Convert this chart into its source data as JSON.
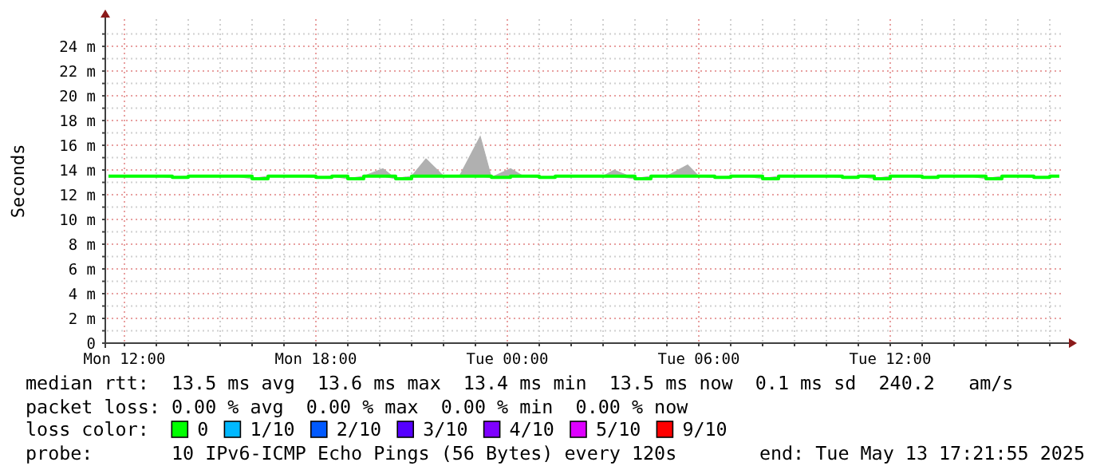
{
  "chart_data": {
    "type": "line",
    "ylabel": "Seconds",
    "xlim": [
      "2025-05-12T11:27",
      "2025-05-13T17:27"
    ],
    "xticks": [
      {
        "value": "2025-05-12T12:00",
        "label": "Mon 12:00"
      },
      {
        "value": "2025-05-12T13:00",
        "label": null
      },
      {
        "value": "2025-05-12T14:00",
        "label": null
      },
      {
        "value": "2025-05-12T15:00",
        "label": null
      },
      {
        "value": "2025-05-12T16:00",
        "label": null
      },
      {
        "value": "2025-05-12T17:00",
        "label": null
      },
      {
        "value": "2025-05-12T18:00",
        "label": "Mon 18:00"
      },
      {
        "value": "2025-05-12T19:00",
        "label": null
      },
      {
        "value": "2025-05-12T20:00",
        "label": null
      },
      {
        "value": "2025-05-12T21:00",
        "label": null
      },
      {
        "value": "2025-05-12T22:00",
        "label": null
      },
      {
        "value": "2025-05-12T23:00",
        "label": null
      },
      {
        "value": "2025-05-13T00:00",
        "label": "Tue 00:00"
      },
      {
        "value": "2025-05-13T01:00",
        "label": null
      },
      {
        "value": "2025-05-13T02:00",
        "label": null
      },
      {
        "value": "2025-05-13T03:00",
        "label": null
      },
      {
        "value": "2025-05-13T04:00",
        "label": null
      },
      {
        "value": "2025-05-13T05:00",
        "label": null
      },
      {
        "value": "2025-05-13T06:00",
        "label": "Tue 06:00"
      },
      {
        "value": "2025-05-13T07:00",
        "label": null
      },
      {
        "value": "2025-05-13T08:00",
        "label": null
      },
      {
        "value": "2025-05-13T09:00",
        "label": null
      },
      {
        "value": "2025-05-13T10:00",
        "label": null
      },
      {
        "value": "2025-05-13T11:00",
        "label": null
      },
      {
        "value": "2025-05-13T12:00",
        "label": "Tue 12:00"
      },
      {
        "value": "2025-05-13T13:00",
        "label": null
      },
      {
        "value": "2025-05-13T14:00",
        "label": null
      },
      {
        "value": "2025-05-13T15:00",
        "label": null
      },
      {
        "value": "2025-05-13T16:00",
        "label": null
      },
      {
        "value": "2025-05-13T17:00",
        "label": null
      }
    ],
    "ylim": [
      0,
      26.2
    ],
    "yticks": [
      0,
      {
        "value": 1,
        "label": null
      },
      {
        "value": 2,
        "label": "2 m"
      },
      {
        "value": 3,
        "label": null
      },
      {
        "value": 4,
        "label": "4 m"
      },
      {
        "value": 5,
        "label": null
      },
      {
        "value": 6,
        "label": "6 m"
      },
      {
        "value": 7,
        "label": null
      },
      {
        "value": 8,
        "label": "8 m"
      },
      {
        "value": 9,
        "label": null
      },
      {
        "value": 10,
        "label": "10 m"
      },
      {
        "value": 11,
        "label": null
      },
      {
        "value": 12,
        "label": "12 m"
      },
      {
        "value": 13,
        "label": null
      },
      {
        "value": 14,
        "label": "14 m"
      },
      {
        "value": 15,
        "label": null
      },
      {
        "value": 16,
        "label": "16 m"
      },
      {
        "value": 17,
        "label": null
      },
      {
        "value": 18,
        "label": "18 m"
      },
      {
        "value": 19,
        "label": null
      },
      {
        "value": 20,
        "label": "20 m"
      },
      {
        "value": 21,
        "label": null
      },
      {
        "value": 22,
        "label": "22 m"
      },
      {
        "value": 23,
        "label": null
      },
      {
        "value": 24,
        "label": "24 m"
      },
      {
        "value": 25,
        "label": null
      }
    ],
    "grid": true,
    "legend": "bottom",
    "legend_title": "loss color:",
    "line_style": "solid",
    "marker": "none",
    "series": [
      {
        "name": "0",
        "color": "#00ff00",
        "x": [
          "2025-05-12T11:30",
          "2025-05-12T12:00",
          "2025-05-12T12:30",
          "2025-05-12T13:00",
          "2025-05-12T13:30",
          "2025-05-12T14:00",
          "2025-05-12T14:30",
          "2025-05-12T15:00",
          "2025-05-12T15:30",
          "2025-05-12T16:00",
          "2025-05-12T16:30",
          "2025-05-12T17:00",
          "2025-05-12T17:30",
          "2025-05-12T18:00",
          "2025-05-12T18:30",
          "2025-05-12T19:00",
          "2025-05-12T19:30",
          "2025-05-12T20:06",
          "2025-05-12T20:30",
          "2025-05-12T21:00",
          "2025-05-12T21:27",
          "2025-05-12T22:00",
          "2025-05-12T22:30",
          "2025-05-12T23:09",
          "2025-05-12T23:30",
          "2025-05-13T00:06",
          "2025-05-13T00:30",
          "2025-05-13T01:00",
          "2025-05-13T01:30",
          "2025-05-13T02:00",
          "2025-05-13T02:30",
          "2025-05-13T03:00",
          "2025-05-13T03:21",
          "2025-05-13T04:00",
          "2025-05-13T04:30",
          "2025-05-13T05:00",
          "2025-05-13T05:39",
          "2025-05-13T06:00",
          "2025-05-13T06:30",
          "2025-05-13T07:00",
          "2025-05-13T07:30",
          "2025-05-13T08:00",
          "2025-05-13T08:30",
          "2025-05-13T09:00",
          "2025-05-13T09:30",
          "2025-05-13T10:00",
          "2025-05-13T10:30",
          "2025-05-13T11:00",
          "2025-05-13T11:30",
          "2025-05-13T12:00",
          "2025-05-13T12:30",
          "2025-05-13T13:00",
          "2025-05-13T13:30",
          "2025-05-13T14:00",
          "2025-05-13T14:30",
          "2025-05-13T15:00",
          "2025-05-13T15:30",
          "2025-05-13T16:00",
          "2025-05-13T16:30",
          "2025-05-13T17:00",
          "2025-05-13T17:18"
        ],
        "values": [
          13.5,
          13.5,
          13.5,
          13.5,
          13.4,
          13.5,
          13.5,
          13.5,
          13.5,
          13.3,
          13.5,
          13.5,
          13.5,
          13.4,
          13.5,
          13.3,
          13.5,
          13.5,
          13.3,
          13.5,
          13.5,
          13.5,
          13.5,
          13.5,
          13.4,
          13.5,
          13.5,
          13.4,
          13.5,
          13.5,
          13.5,
          13.5,
          13.5,
          13.3,
          13.5,
          13.5,
          13.5,
          13.5,
          13.4,
          13.5,
          13.5,
          13.3,
          13.5,
          13.5,
          13.5,
          13.5,
          13.4,
          13.5,
          13.3,
          13.5,
          13.5,
          13.4,
          13.5,
          13.5,
          13.5,
          13.3,
          13.5,
          13.5,
          13.4,
          13.5,
          13.5
        ],
        "lower": [
          13.5,
          13.5,
          13.5,
          13.5,
          13.4,
          13.5,
          13.5,
          13.5,
          13.5,
          13.3,
          13.5,
          13.5,
          13.5,
          13.4,
          13.5,
          13.3,
          13.5,
          13.5,
          13.3,
          13.5,
          13.5,
          13.5,
          13.5,
          13.5,
          13.4,
          13.5,
          13.5,
          13.4,
          13.5,
          13.5,
          13.5,
          13.5,
          13.5,
          13.3,
          13.5,
          13.5,
          13.5,
          13.5,
          13.4,
          13.5,
          13.5,
          13.3,
          13.5,
          13.5,
          13.5,
          13.5,
          13.4,
          13.5,
          13.3,
          13.5,
          13.5,
          13.4,
          13.5,
          13.5,
          13.5,
          13.3,
          13.5,
          13.5,
          13.4,
          13.5,
          13.5
        ],
        "upper": [
          13.5,
          13.5,
          13.5,
          13.5,
          13.4,
          13.5,
          13.5,
          13.5,
          13.5,
          13.3,
          13.5,
          13.5,
          13.5,
          13.4,
          13.5,
          13.3,
          13.5,
          14.1,
          13.3,
          13.5,
          14.9,
          13.5,
          13.5,
          16.7,
          13.4,
          14.1,
          13.5,
          13.4,
          13.5,
          13.5,
          13.5,
          13.5,
          14.0,
          13.3,
          13.5,
          13.5,
          14.4,
          13.5,
          13.4,
          13.5,
          13.5,
          13.3,
          13.5,
          13.5,
          13.5,
          13.5,
          13.4,
          13.5,
          13.3,
          13.5,
          13.5,
          13.4,
          13.5,
          13.5,
          13.5,
          13.3,
          13.5,
          13.5,
          13.4,
          13.5,
          13.5
        ]
      },
      {
        "name": "1/10",
        "color": "#00b8ff"
      },
      {
        "name": "2/10",
        "color": "#0059ff"
      },
      {
        "name": "3/10",
        "color": "#5500ff"
      },
      {
        "name": "4/10",
        "color": "#7e00ff"
      },
      {
        "name": "5/10",
        "color": "#dd00ff"
      },
      {
        "name": "9/10",
        "color": "#ff0000"
      }
    ],
    "annotations": [
      "median rtt:  13.5 ms avg  13.6 ms max  13.4 ms min  13.5 ms now  0.1 ms sd  240.2   am/s",
      "packet loss: 0.00 % avg  0.00 % max  0.00 % min  0.00 % now",
      "probe:       10 IPv6-ICMP Echo Pings (56 Bytes) every 120s",
      "end: Tue May 13 17:21:55 2025"
    ]
  }
}
